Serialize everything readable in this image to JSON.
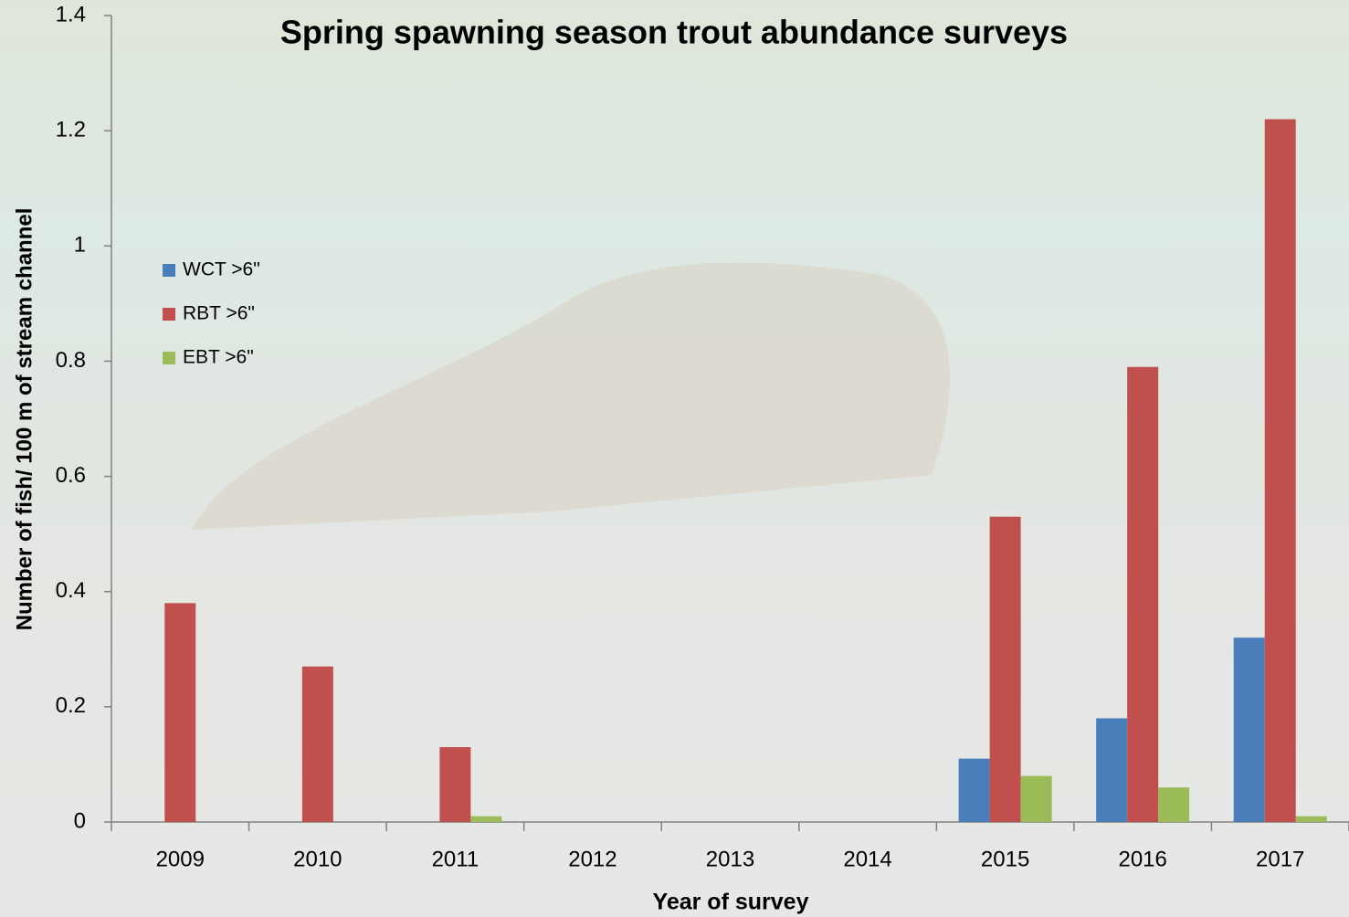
{
  "chart_data": {
    "type": "bar",
    "title": "Spring spawning season trout abundance surveys",
    "x_label": "Year of survey",
    "y_label": "Number of fish/ 100 m of stream channel",
    "categories": [
      "2009",
      "2010",
      "2011",
      "2012",
      "2013",
      "2014",
      "2015",
      "2016",
      "2017"
    ],
    "series": [
      {
        "name": "WCT >6\"",
        "color": "#4a7ebb",
        "values": [
          0,
          0,
          0,
          0,
          0,
          0,
          0.11,
          0.18,
          0.32
        ]
      },
      {
        "name": "RBT >6\"",
        "color": "#c0504d",
        "values": [
          0.38,
          0.27,
          0.13,
          0,
          0,
          0,
          0.53,
          0.79,
          1.22
        ]
      },
      {
        "name": "EBT >6\"",
        "color": "#9bbb59",
        "values": [
          0,
          0,
          0.01,
          0,
          0,
          0,
          0.08,
          0.06,
          0.01
        ]
      }
    ],
    "ylim": [
      0,
      1.4
    ],
    "yticks": [
      0,
      0.2,
      0.4,
      0.6,
      0.8,
      1,
      1.2,
      1.4
    ]
  }
}
